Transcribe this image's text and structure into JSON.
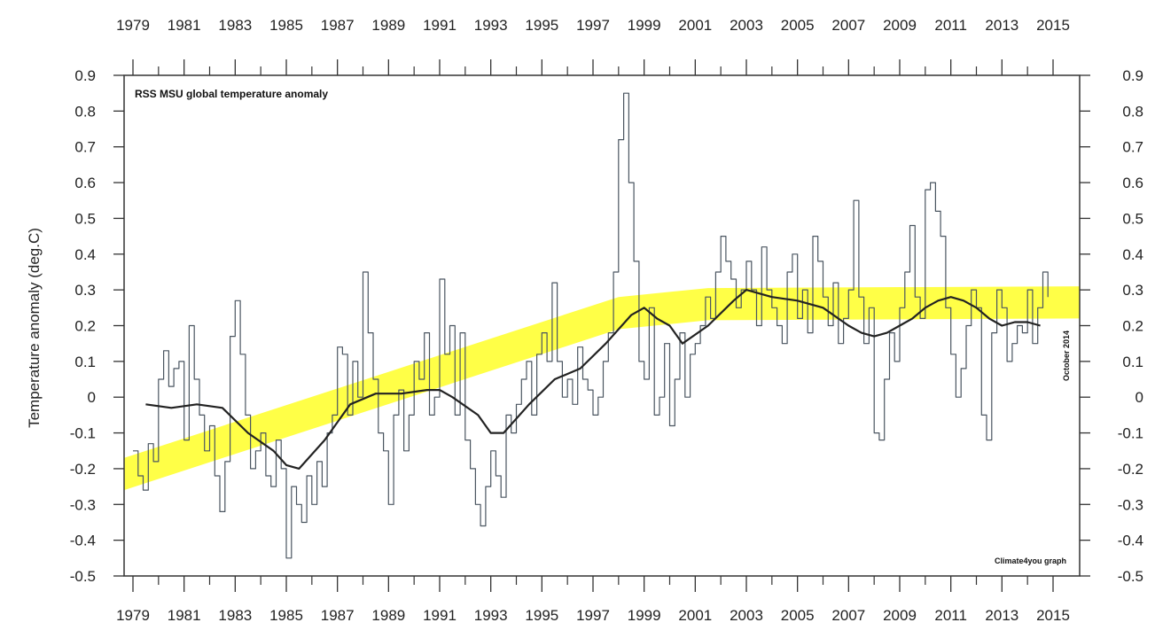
{
  "chart_data": {
    "type": "line",
    "title": "RSS MSU global temperature anomaly",
    "ylabel": "Temperature anomaly (deg.C)",
    "xlabel": "",
    "date_note": "October 2014",
    "credit": "Climate4you graph",
    "xlim": [
      1979,
      2015
    ],
    "ylim": [
      -0.5,
      0.9
    ],
    "x_ticks": [
      "1979",
      "1981",
      "1983",
      "1985",
      "1987",
      "1989",
      "1991",
      "1993",
      "1995",
      "1997",
      "1999",
      "2001",
      "2003",
      "2005",
      "2007",
      "2009",
      "2011",
      "2013",
      "2015"
    ],
    "y_ticks": [
      "0.9",
      "0.8",
      "0.7",
      "0.6",
      "0.5",
      "0.4",
      "0.3",
      "0.2",
      "0.1",
      "0",
      "-0.1",
      "-0.2",
      "-0.3",
      "-0.4",
      "-0.5"
    ],
    "grid": false,
    "trend_band": {
      "color": "#ffff33",
      "half_width": 0.045,
      "x": [
        1979,
        1998,
        2001.5,
        2015
      ],
      "y": [
        -0.215,
        0.235,
        0.26,
        0.265
      ]
    },
    "series": [
      {
        "color": "#4a5560",
        "style": "monthly",
        "x": [
          1979.0,
          1979.2,
          1979.4,
          1979.6,
          1979.8,
          1980.0,
          1980.2,
          1980.4,
          1980.6,
          1980.8,
          1981.0,
          1981.2,
          1981.4,
          1981.6,
          1981.8,
          1982.0,
          1982.2,
          1982.4,
          1982.6,
          1982.8,
          1983.0,
          1983.2,
          1983.4,
          1983.6,
          1983.8,
          1984.0,
          1984.2,
          1984.4,
          1984.6,
          1984.8,
          1985.0,
          1985.2,
          1985.4,
          1985.6,
          1985.8,
          1986.0,
          1986.2,
          1986.4,
          1986.6,
          1986.8,
          1987.0,
          1987.2,
          1987.4,
          1987.6,
          1987.8,
          1988.0,
          1988.2,
          1988.4,
          1988.6,
          1988.8,
          1989.0,
          1989.2,
          1989.4,
          1989.6,
          1989.8,
          1990.0,
          1990.2,
          1990.4,
          1990.6,
          1990.8,
          1991.0,
          1991.2,
          1991.4,
          1991.6,
          1991.8,
          1992.0,
          1992.2,
          1992.4,
          1992.6,
          1992.8,
          1993.0,
          1993.2,
          1993.4,
          1993.6,
          1993.8,
          1994.0,
          1994.2,
          1994.4,
          1994.6,
          1994.8,
          1995.0,
          1995.2,
          1995.4,
          1995.6,
          1995.8,
          1996.0,
          1996.2,
          1996.4,
          1996.6,
          1996.8,
          1997.0,
          1997.2,
          1997.4,
          1997.6,
          1997.8,
          1998.0,
          1998.2,
          1998.4,
          1998.6,
          1998.8,
          1999.0,
          1999.2,
          1999.4,
          1999.6,
          1999.8,
          2000.0,
          2000.2,
          2000.4,
          2000.6,
          2000.8,
          2001.0,
          2001.2,
          2001.4,
          2001.6,
          2001.8,
          2002.0,
          2002.2,
          2002.4,
          2002.6,
          2002.8,
          2003.0,
          2003.2,
          2003.4,
          2003.6,
          2003.8,
          2004.0,
          2004.2,
          2004.4,
          2004.6,
          2004.8,
          2005.0,
          2005.2,
          2005.4,
          2005.6,
          2005.8,
          2006.0,
          2006.2,
          2006.4,
          2006.6,
          2006.8,
          2007.0,
          2007.2,
          2007.4,
          2007.6,
          2007.8,
          2008.0,
          2008.2,
          2008.4,
          2008.6,
          2008.8,
          2009.0,
          2009.2,
          2009.4,
          2009.6,
          2009.8,
          2010.0,
          2010.2,
          2010.4,
          2010.6,
          2010.8,
          2011.0,
          2011.2,
          2011.4,
          2011.6,
          2011.8,
          2012.0,
          2012.2,
          2012.4,
          2012.6,
          2012.8,
          2013.0,
          2013.2,
          2013.4,
          2013.6,
          2013.8,
          2014.0,
          2014.2,
          2014.4,
          2014.6,
          2014.8
        ],
        "y": [
          -0.15,
          -0.22,
          -0.26,
          -0.13,
          -0.18,
          0.05,
          0.13,
          0.03,
          0.08,
          0.1,
          -0.12,
          0.2,
          0.05,
          -0.05,
          -0.15,
          -0.08,
          -0.22,
          -0.32,
          -0.18,
          0.17,
          0.27,
          0.12,
          -0.05,
          -0.2,
          -0.15,
          -0.1,
          -0.22,
          -0.25,
          -0.12,
          -0.2,
          -0.45,
          -0.25,
          -0.3,
          -0.35,
          -0.22,
          -0.3,
          -0.18,
          -0.25,
          -0.1,
          -0.05,
          0.14,
          0.12,
          -0.05,
          0.1,
          0.0,
          0.35,
          0.18,
          0.05,
          -0.1,
          -0.15,
          -0.3,
          -0.05,
          0.02,
          -0.15,
          -0.05,
          0.1,
          0.05,
          0.18,
          -0.05,
          0.0,
          0.33,
          0.12,
          0.2,
          -0.05,
          0.18,
          -0.12,
          -0.2,
          -0.3,
          -0.36,
          -0.25,
          -0.15,
          -0.22,
          -0.28,
          -0.05,
          -0.1,
          -0.02,
          0.05,
          0.1,
          -0.05,
          0.12,
          0.18,
          0.1,
          0.32,
          0.1,
          0.0,
          0.05,
          -0.02,
          0.14,
          0.05,
          0.02,
          -0.05,
          0.0,
          0.1,
          0.18,
          0.35,
          0.72,
          0.85,
          0.6,
          0.38,
          0.1,
          0.05,
          0.25,
          -0.05,
          0.0,
          0.15,
          -0.08,
          0.05,
          0.18,
          0.0,
          0.12,
          0.15,
          0.2,
          0.28,
          0.22,
          0.35,
          0.45,
          0.38,
          0.33,
          0.25,
          0.3,
          0.38,
          0.3,
          0.2,
          0.42,
          0.3,
          0.25,
          0.2,
          0.15,
          0.35,
          0.4,
          0.22,
          0.3,
          0.18,
          0.45,
          0.38,
          0.28,
          0.2,
          0.32,
          0.15,
          0.22,
          0.3,
          0.55,
          0.28,
          0.15,
          0.25,
          -0.1,
          -0.12,
          0.05,
          0.18,
          0.1,
          0.25,
          0.35,
          0.48,
          0.28,
          0.22,
          0.58,
          0.6,
          0.52,
          0.45,
          0.25,
          0.12,
          0.0,
          0.08,
          0.2,
          0.3,
          0.25,
          -0.05,
          -0.12,
          0.18,
          0.3,
          0.25,
          0.1,
          0.15,
          0.2,
          0.18,
          0.3,
          0.15,
          0.25,
          0.35,
          0.28
        ]
      },
      {
        "color": "#222222",
        "style": "running-mean",
        "x": [
          1979.5,
          1980.5,
          1981.5,
          1982.5,
          1983.5,
          1984.5,
          1985.0,
          1985.5,
          1986.5,
          1987.5,
          1988.5,
          1989.5,
          1990.5,
          1991.0,
          1991.5,
          1992.5,
          1993.0,
          1993.5,
          1994.5,
          1995.5,
          1996.5,
          1997.5,
          1998.5,
          1999.0,
          1999.5,
          2000.0,
          2000.5,
          2001.5,
          2002.5,
          2003.0,
          2004.0,
          2005.0,
          2006.0,
          2007.0,
          2007.5,
          2008.0,
          2008.5,
          2009.0,
          2009.5,
          2010.0,
          2010.5,
          2011.0,
          2011.5,
          2012.0,
          2012.5,
          2013.0,
          2013.5,
          2014.0,
          2014.5
        ],
        "y": [
          -0.02,
          -0.03,
          -0.02,
          -0.03,
          -0.1,
          -0.15,
          -0.19,
          -0.2,
          -0.12,
          -0.02,
          0.01,
          0.01,
          0.02,
          0.02,
          0.0,
          -0.05,
          -0.1,
          -0.1,
          -0.02,
          0.05,
          0.08,
          0.15,
          0.23,
          0.25,
          0.22,
          0.2,
          0.15,
          0.2,
          0.27,
          0.3,
          0.28,
          0.27,
          0.25,
          0.2,
          0.18,
          0.17,
          0.18,
          0.2,
          0.22,
          0.25,
          0.27,
          0.28,
          0.27,
          0.25,
          0.22,
          0.2,
          0.21,
          0.21,
          0.2
        ]
      }
    ]
  }
}
